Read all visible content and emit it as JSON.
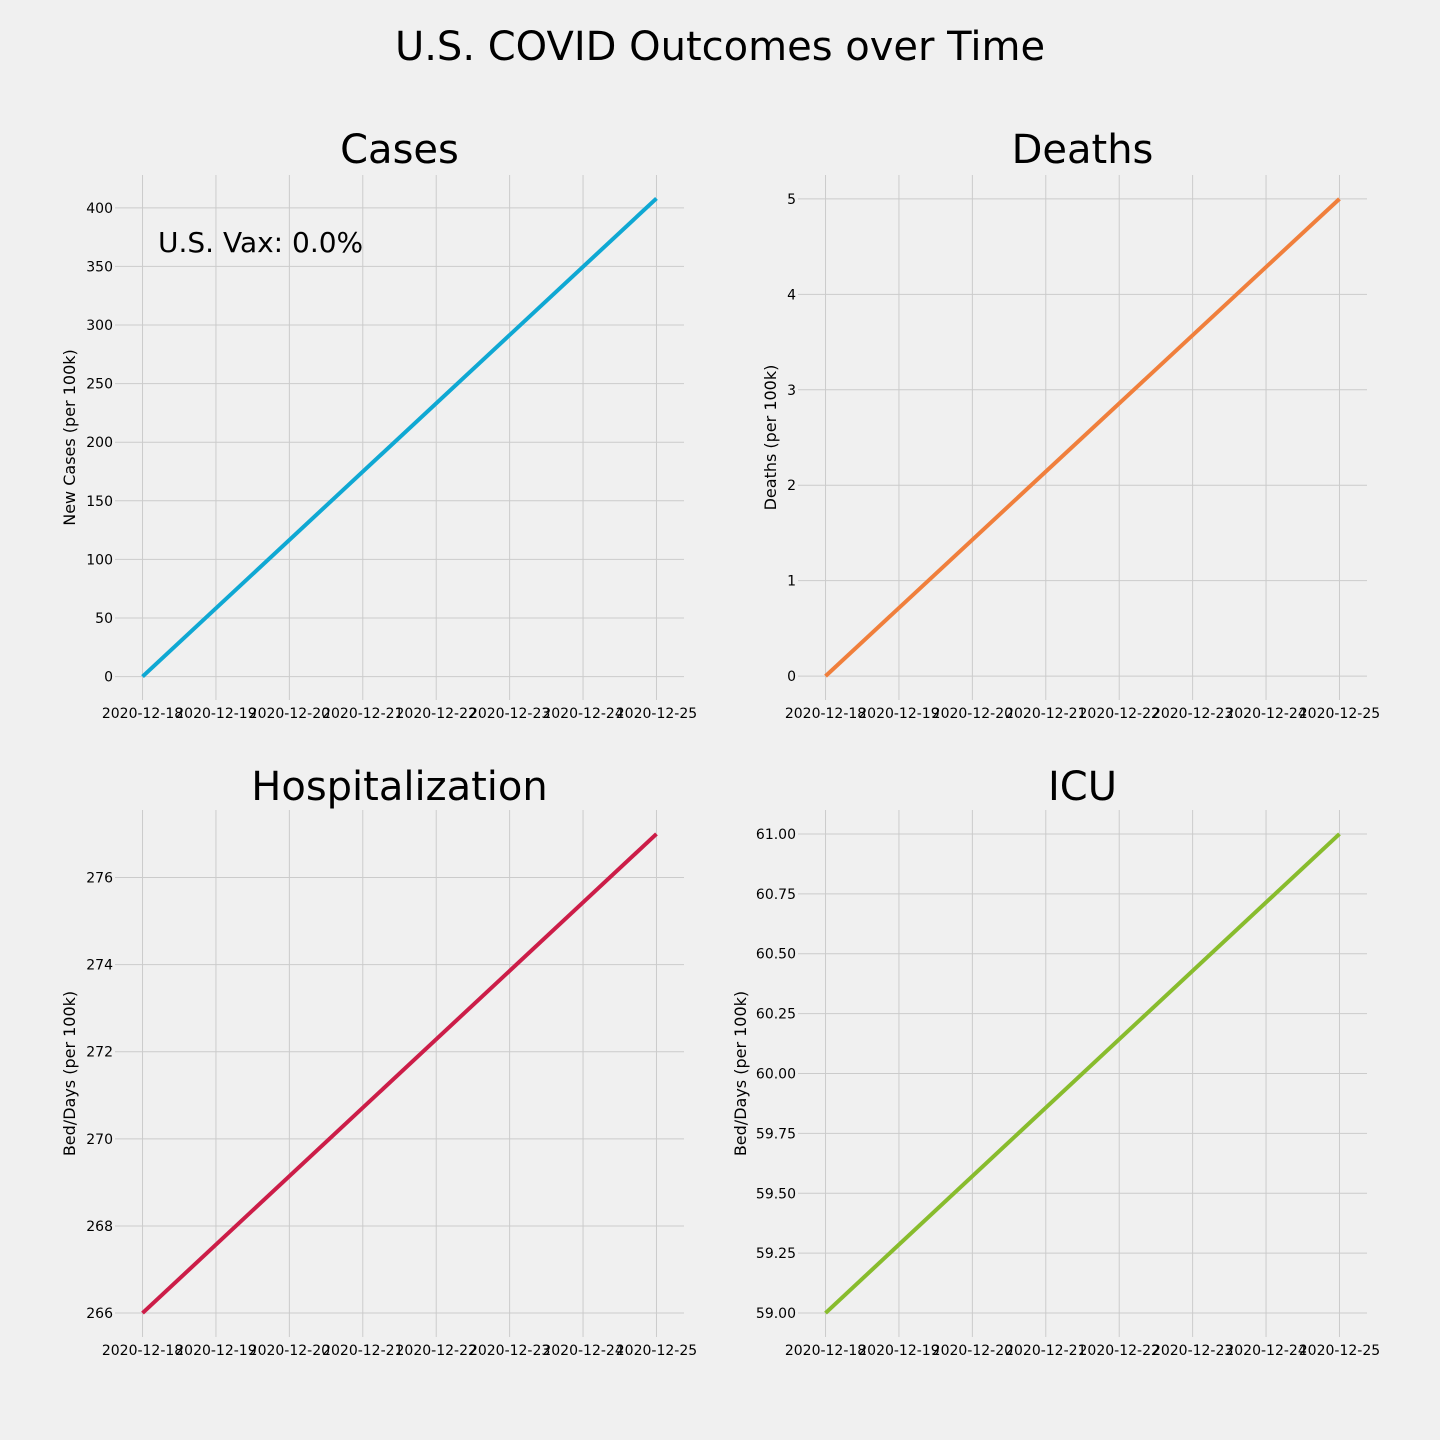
{
  "title": "U.S. COVID Outcomes over Time",
  "chart_data": [
    {
      "type": "line",
      "title": "Cases",
      "xlabel": "",
      "ylabel": "New Cases (per 100k)",
      "color": "#0fa8d3",
      "x": [
        "2020-12-18",
        "2020-12-25"
      ],
      "y": [
        0,
        408
      ],
      "xlim": [
        "2020-12-17T15:00",
        "2020-12-25T09:00"
      ],
      "ylim": [
        -20,
        428
      ],
      "xticks": [
        "2020-12-18",
        "2020-12-19",
        "2020-12-20",
        "2020-12-21",
        "2020-12-22",
        "2020-12-23",
        "2020-12-24",
        "2020-12-25"
      ],
      "yticks": [
        0,
        50,
        100,
        150,
        200,
        250,
        300,
        350,
        400
      ],
      "ytick_labels": [
        "0",
        "50",
        "100",
        "150",
        "200",
        "250",
        "300",
        "350",
        "400"
      ],
      "grid": true,
      "annotation": "U.S. Vax: 0.0%"
    },
    {
      "type": "line",
      "title": "Deaths",
      "xlabel": "",
      "ylabel": "Deaths (per 100k)",
      "color": "#f07f3c",
      "x": [
        "2020-12-18",
        "2020-12-25"
      ],
      "y": [
        0,
        5
      ],
      "xlim": [
        "2020-12-17T15:00",
        "2020-12-25T09:00"
      ],
      "ylim": [
        -0.25,
        5.25
      ],
      "xticks": [
        "2020-12-18",
        "2020-12-19",
        "2020-12-20",
        "2020-12-21",
        "2020-12-22",
        "2020-12-23",
        "2020-12-24",
        "2020-12-25"
      ],
      "yticks": [
        0,
        1,
        2,
        3,
        4,
        5
      ],
      "ytick_labels": [
        "0",
        "1",
        "2",
        "3",
        "4",
        "5"
      ],
      "grid": true
    },
    {
      "type": "line",
      "title": "Hospitalization",
      "xlabel": "",
      "ylabel": "Bed/Days (per 100k)",
      "color": "#cc1d48",
      "x": [
        "2020-12-18",
        "2020-12-25"
      ],
      "y": [
        266,
        277
      ],
      "xlim": [
        "2020-12-17T15:00",
        "2020-12-25T09:00"
      ],
      "ylim": [
        265.45,
        277.55
      ],
      "xticks": [
        "2020-12-18",
        "2020-12-19",
        "2020-12-20",
        "2020-12-21",
        "2020-12-22",
        "2020-12-23",
        "2020-12-24",
        "2020-12-25"
      ],
      "yticks": [
        266,
        268,
        270,
        272,
        274,
        276
      ],
      "ytick_labels": [
        "266",
        "268",
        "270",
        "272",
        "274",
        "276"
      ],
      "grid": true
    },
    {
      "type": "line",
      "title": "ICU",
      "xlabel": "",
      "ylabel": "Bed/Days (per 100k)",
      "color": "#88bc2d",
      "x": [
        "2020-12-18",
        "2020-12-25"
      ],
      "y": [
        59,
        61
      ],
      "xlim": [
        "2020-12-17T15:00",
        "2020-12-25T09:00"
      ],
      "ylim": [
        58.9,
        61.1
      ],
      "xticks": [
        "2020-12-18",
        "2020-12-19",
        "2020-12-20",
        "2020-12-21",
        "2020-12-22",
        "2020-12-23",
        "2020-12-24",
        "2020-12-25"
      ],
      "yticks": [
        59.0,
        59.25,
        59.5,
        59.75,
        60.0,
        60.25,
        60.5,
        60.75,
        61.0
      ],
      "ytick_labels": [
        "59.00",
        "59.25",
        "59.50",
        "59.75",
        "60.00",
        "60.25",
        "60.50",
        "60.75",
        "61.00"
      ],
      "grid": true
    }
  ]
}
